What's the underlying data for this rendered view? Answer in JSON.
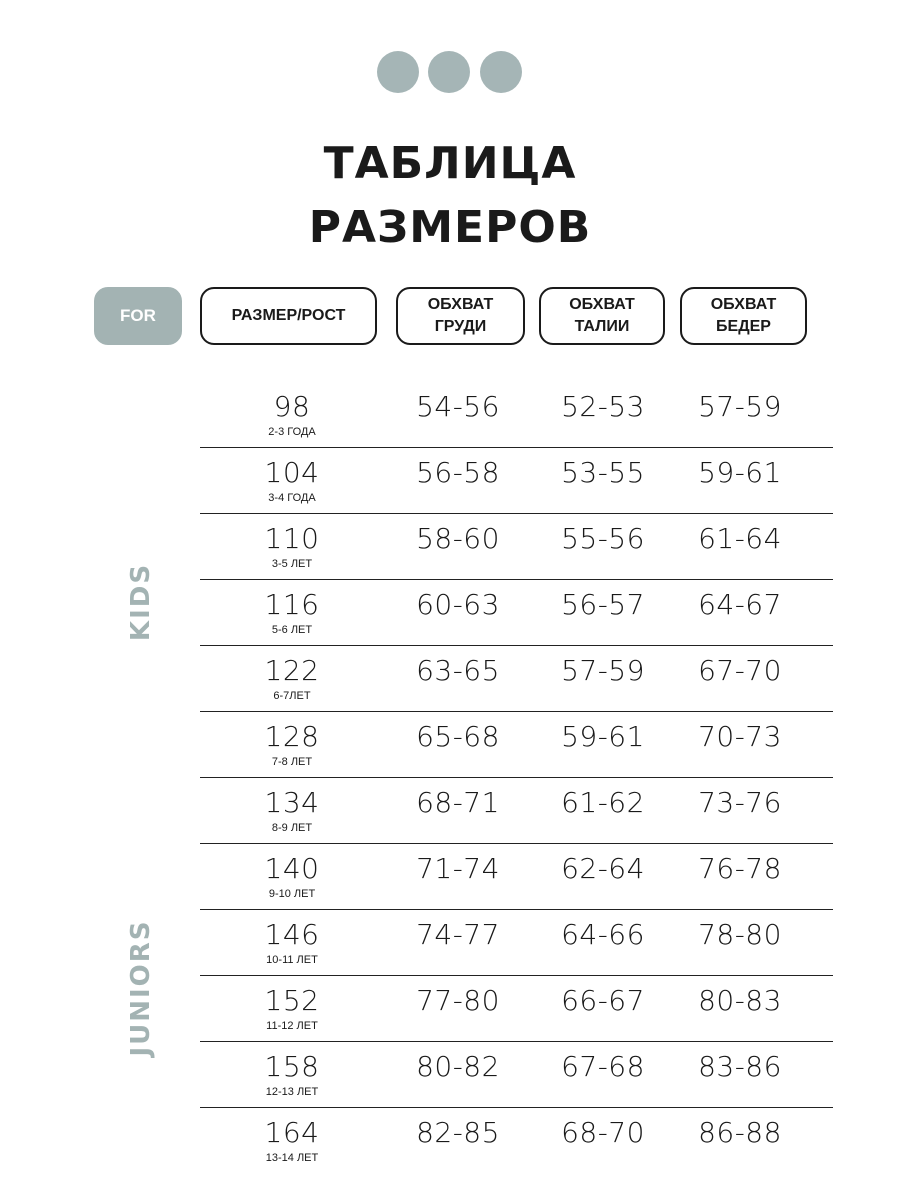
{
  "colors": {
    "accent": "#a3b3b3",
    "text": "#1a1a1a"
  },
  "title": {
    "line1": "ТАБЛИЦА",
    "line2": "РАЗМЕРОВ"
  },
  "headers": {
    "for": "FOR",
    "size": "РАЗМЕР/РОСТ",
    "chest": [
      "ОБХВАТ",
      "ГРУДИ"
    ],
    "waist": [
      "ОБХВАТ",
      "ТАЛИИ"
    ],
    "hips": [
      "ОБХВАТ",
      "БЕДЕР"
    ]
  },
  "groups": {
    "kids": "KIDS",
    "juniors": "JUNIORS"
  },
  "rows": [
    {
      "size": "98",
      "age": "2-3 ГОДА",
      "chest": "54-56",
      "waist": "52-53",
      "hips": "57-59"
    },
    {
      "size": "104",
      "age": "3-4 ГОДА",
      "chest": "56-58",
      "waist": "53-55",
      "hips": "59-61"
    },
    {
      "size": "110",
      "age": "3-5 ЛЕТ",
      "chest": "58-60",
      "waist": "55-56",
      "hips": "61-64"
    },
    {
      "size": "116",
      "age": "5-6 ЛЕТ",
      "chest": "60-63",
      "waist": "56-57",
      "hips": "64-67"
    },
    {
      "size": "122",
      "age": "6-7ЛЕТ",
      "chest": "63-65",
      "waist": "57-59",
      "hips": "67-70"
    },
    {
      "size": "128",
      "age": "7-8 ЛЕТ",
      "chest": "65-68",
      "waist": "59-61",
      "hips": "70-73"
    },
    {
      "size": "134",
      "age": "8-9 ЛЕТ",
      "chest": "68-71",
      "waist": "61-62",
      "hips": "73-76"
    },
    {
      "size": "140",
      "age": "9-10 ЛЕТ",
      "chest": "71-74",
      "waist": "62-64",
      "hips": "76-78"
    },
    {
      "size": "146",
      "age": "10-11 ЛЕТ",
      "chest": "74-77",
      "waist": "64-66",
      "hips": "78-80"
    },
    {
      "size": "152",
      "age": "11-12 ЛЕТ",
      "chest": "77-80",
      "waist": "66-67",
      "hips": "80-83"
    },
    {
      "size": "158",
      "age": "12-13 ЛЕТ",
      "chest": "80-82",
      "waist": "67-68",
      "hips": "83-86"
    },
    {
      "size": "164",
      "age": "13-14 ЛЕТ",
      "chest": "82-85",
      "waist": "68-70",
      "hips": "86-88"
    }
  ]
}
